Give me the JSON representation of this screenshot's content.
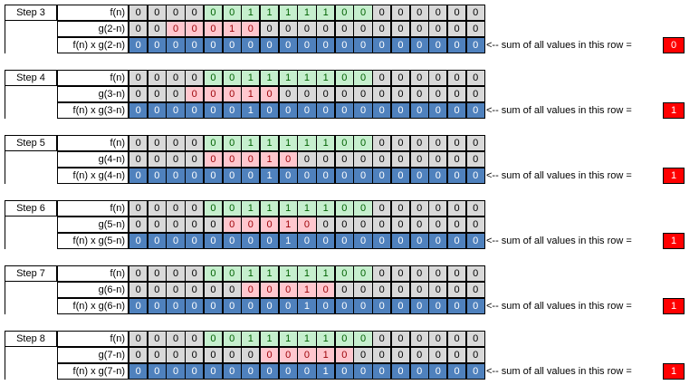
{
  "sum_caption": "<--  sum of all values in this row =",
  "colors": {
    "gray": "#d9d9d9",
    "green": "#c6efce",
    "pink": "#ffc7ce",
    "blue": "#4f81bd",
    "sum_box": "#ff0000"
  },
  "steps": [
    {
      "step_label": "Step 3",
      "f_label": "f(n)",
      "f_values": [
        0,
        0,
        0,
        0,
        0,
        0,
        1,
        1,
        1,
        1,
        1,
        0,
        0,
        0,
        0,
        0,
        0,
        0,
        0
      ],
      "f_colors": [
        "gray",
        "gray",
        "gray",
        "gray",
        "green",
        "green",
        "green",
        "green",
        "green",
        "green",
        "green",
        "green",
        "green",
        "gray",
        "gray",
        "gray",
        "gray",
        "gray",
        "gray"
      ],
      "g_label": "g(2-n)",
      "g_values": [
        0,
        0,
        0,
        0,
        0,
        1,
        0,
        0,
        0,
        0,
        0,
        0,
        0,
        0,
        0,
        0,
        0,
        0,
        0
      ],
      "g_colors": [
        "gray",
        "gray",
        "pink",
        "pink",
        "pink",
        "pink",
        "pink",
        "gray",
        "gray",
        "gray",
        "gray",
        "gray",
        "gray",
        "gray",
        "gray",
        "gray",
        "gray",
        "gray",
        "gray"
      ],
      "prod_label": "f(n) x g(2-n)",
      "prod_values": [
        0,
        0,
        0,
        0,
        0,
        0,
        0,
        0,
        0,
        0,
        0,
        0,
        0,
        0,
        0,
        0,
        0,
        0,
        0
      ],
      "sum": "0"
    },
    {
      "step_label": "Step 4",
      "f_label": "f(n)",
      "f_values": [
        0,
        0,
        0,
        0,
        0,
        0,
        1,
        1,
        1,
        1,
        1,
        0,
        0,
        0,
        0,
        0,
        0,
        0,
        0
      ],
      "f_colors": [
        "gray",
        "gray",
        "gray",
        "gray",
        "green",
        "green",
        "green",
        "green",
        "green",
        "green",
        "green",
        "green",
        "green",
        "gray",
        "gray",
        "gray",
        "gray",
        "gray",
        "gray"
      ],
      "g_label": "g(3-n)",
      "g_values": [
        0,
        0,
        0,
        0,
        0,
        0,
        1,
        0,
        0,
        0,
        0,
        0,
        0,
        0,
        0,
        0,
        0,
        0,
        0
      ],
      "g_colors": [
        "gray",
        "gray",
        "gray",
        "pink",
        "pink",
        "pink",
        "pink",
        "pink",
        "gray",
        "gray",
        "gray",
        "gray",
        "gray",
        "gray",
        "gray",
        "gray",
        "gray",
        "gray",
        "gray"
      ],
      "prod_label": "f(n) x g(3-n)",
      "prod_values": [
        0,
        0,
        0,
        0,
        0,
        0,
        1,
        0,
        0,
        0,
        0,
        0,
        0,
        0,
        0,
        0,
        0,
        0,
        0
      ],
      "sum": "1"
    },
    {
      "step_label": "Step 5",
      "f_label": "f(n)",
      "f_values": [
        0,
        0,
        0,
        0,
        0,
        0,
        1,
        1,
        1,
        1,
        1,
        0,
        0,
        0,
        0,
        0,
        0,
        0,
        0
      ],
      "f_colors": [
        "gray",
        "gray",
        "gray",
        "gray",
        "green",
        "green",
        "green",
        "green",
        "green",
        "green",
        "green",
        "green",
        "green",
        "gray",
        "gray",
        "gray",
        "gray",
        "gray",
        "gray"
      ],
      "g_label": "g(4-n)",
      "g_values": [
        0,
        0,
        0,
        0,
        0,
        0,
        0,
        1,
        0,
        0,
        0,
        0,
        0,
        0,
        0,
        0,
        0,
        0,
        0
      ],
      "g_colors": [
        "gray",
        "gray",
        "gray",
        "gray",
        "pink",
        "pink",
        "pink",
        "pink",
        "pink",
        "gray",
        "gray",
        "gray",
        "gray",
        "gray",
        "gray",
        "gray",
        "gray",
        "gray",
        "gray"
      ],
      "prod_label": "f(n) x g(4-n)",
      "prod_values": [
        0,
        0,
        0,
        0,
        0,
        0,
        0,
        1,
        0,
        0,
        0,
        0,
        0,
        0,
        0,
        0,
        0,
        0,
        0
      ],
      "sum": "1"
    },
    {
      "step_label": "Step 6",
      "f_label": "f(n)",
      "f_values": [
        0,
        0,
        0,
        0,
        0,
        0,
        1,
        1,
        1,
        1,
        1,
        0,
        0,
        0,
        0,
        0,
        0,
        0,
        0
      ],
      "f_colors": [
        "gray",
        "gray",
        "gray",
        "gray",
        "green",
        "green",
        "green",
        "green",
        "green",
        "green",
        "green",
        "green",
        "green",
        "gray",
        "gray",
        "gray",
        "gray",
        "gray",
        "gray"
      ],
      "g_label": "g(5-n)",
      "g_values": [
        0,
        0,
        0,
        0,
        0,
        0,
        0,
        0,
        1,
        0,
        0,
        0,
        0,
        0,
        0,
        0,
        0,
        0,
        0
      ],
      "g_colors": [
        "gray",
        "gray",
        "gray",
        "gray",
        "gray",
        "pink",
        "pink",
        "pink",
        "pink",
        "pink",
        "gray",
        "gray",
        "gray",
        "gray",
        "gray",
        "gray",
        "gray",
        "gray",
        "gray"
      ],
      "prod_label": "f(n) x g(5-n)",
      "prod_values": [
        0,
        0,
        0,
        0,
        0,
        0,
        0,
        0,
        1,
        0,
        0,
        0,
        0,
        0,
        0,
        0,
        0,
        0,
        0
      ],
      "sum": "1"
    },
    {
      "step_label": "Step 7",
      "f_label": "f(n)",
      "f_values": [
        0,
        0,
        0,
        0,
        0,
        0,
        1,
        1,
        1,
        1,
        1,
        0,
        0,
        0,
        0,
        0,
        0,
        0,
        0
      ],
      "f_colors": [
        "gray",
        "gray",
        "gray",
        "gray",
        "green",
        "green",
        "green",
        "green",
        "green",
        "green",
        "green",
        "green",
        "green",
        "gray",
        "gray",
        "gray",
        "gray",
        "gray",
        "gray"
      ],
      "g_label": "g(6-n)",
      "g_values": [
        0,
        0,
        0,
        0,
        0,
        0,
        0,
        0,
        0,
        1,
        0,
        0,
        0,
        0,
        0,
        0,
        0,
        0,
        0
      ],
      "g_colors": [
        "gray",
        "gray",
        "gray",
        "gray",
        "gray",
        "gray",
        "pink",
        "pink",
        "pink",
        "pink",
        "pink",
        "gray",
        "gray",
        "gray",
        "gray",
        "gray",
        "gray",
        "gray",
        "gray"
      ],
      "prod_label": "f(n) x g(6-n)",
      "prod_values": [
        0,
        0,
        0,
        0,
        0,
        0,
        0,
        0,
        0,
        1,
        0,
        0,
        0,
        0,
        0,
        0,
        0,
        0,
        0
      ],
      "sum": "1"
    },
    {
      "step_label": "Step 8",
      "f_label": "f(n)",
      "f_values": [
        0,
        0,
        0,
        0,
        0,
        0,
        1,
        1,
        1,
        1,
        1,
        0,
        0,
        0,
        0,
        0,
        0,
        0,
        0
      ],
      "f_colors": [
        "gray",
        "gray",
        "gray",
        "gray",
        "green",
        "green",
        "green",
        "green",
        "green",
        "green",
        "green",
        "green",
        "green",
        "gray",
        "gray",
        "gray",
        "gray",
        "gray",
        "gray"
      ],
      "g_label": "g(7-n)",
      "g_values": [
        0,
        0,
        0,
        0,
        0,
        0,
        0,
        0,
        0,
        0,
        1,
        0,
        0,
        0,
        0,
        0,
        0,
        0,
        0
      ],
      "g_colors": [
        "gray",
        "gray",
        "gray",
        "gray",
        "gray",
        "gray",
        "gray",
        "pink",
        "pink",
        "pink",
        "pink",
        "pink",
        "gray",
        "gray",
        "gray",
        "gray",
        "gray",
        "gray",
        "gray"
      ],
      "prod_label": "f(n) x g(7-n)",
      "prod_values": [
        0,
        0,
        0,
        0,
        0,
        0,
        0,
        0,
        0,
        0,
        1,
        0,
        0,
        0,
        0,
        0,
        0,
        0,
        0
      ],
      "sum": "1"
    }
  ]
}
